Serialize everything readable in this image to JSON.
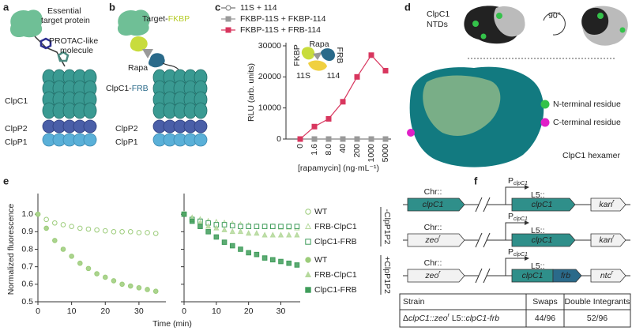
{
  "panel_labels": [
    "a",
    "b",
    "c",
    "d",
    "e",
    "f"
  ],
  "panel_a": {
    "target": [
      "Essential",
      "target protein"
    ],
    "molecule": [
      "PROTAC-like",
      "molecule"
    ],
    "clpc1": "ClpC1",
    "clpp2": "ClpP2",
    "clpp1": "ClpP1"
  },
  "panel_b": {
    "target": [
      "Target-",
      "FKBP"
    ],
    "rapa": "Rapa",
    "clpc1": [
      "ClpC1-",
      "FRB"
    ],
    "clpp2": "ClpP2",
    "clpp1": "ClpP1"
  },
  "panel_d": {
    "ntds": [
      "ClpC1",
      "NTDs"
    ],
    "rotation": "90°",
    "legend": [
      "N-terminal residue",
      "C-terminal residue"
    ],
    "hexamer": "ClpC1 hexamer"
  },
  "panel_f": {
    "constructs": [
      {
        "chr": "Chr::",
        "chr_gene": [
          "clpC1"
        ],
        "promoter": [
          "P",
          "clpC1"
        ],
        "l5": "L5::",
        "gene": "clpC1",
        "marker": [
          "kan",
          "r"
        ]
      },
      {
        "chr": "Chr::",
        "chr_gene": [
          "zeo",
          "r"
        ],
        "promoter": [
          "P",
          "clpC1"
        ],
        "l5": "L5::",
        "gene": "clpC1",
        "marker": [
          "kan",
          "r"
        ]
      },
      {
        "chr": "Chr::",
        "chr_gene": [
          "zeo",
          "r"
        ],
        "promoter": [
          "P",
          "clpC1"
        ],
        "l5": "L5::",
        "gene": "clpC1",
        "tag": "frb",
        "marker": [
          "ntc",
          "r"
        ]
      }
    ],
    "table": {
      "header": [
        "Strain",
        "Swaps",
        "Double Integrants"
      ],
      "rows": [
        [
          [
            "Δ",
            "clpC1",
            "::",
            "zeo",
            "r",
            " L5::",
            "clpC1-frb"
          ],
          "44/96",
          "52/96"
        ]
      ]
    }
  },
  "chart_data": [
    {
      "type": "line",
      "categories": [
        "0",
        "1.6",
        "8.0",
        "40",
        "200",
        "1000",
        "5000"
      ],
      "series": [
        {
          "name": "11S + 114",
          "color": "#777777",
          "marker": "o",
          "filled": false,
          "values": [
            0,
            0,
            0,
            0,
            0,
            0,
            0
          ]
        },
        {
          "name": "FKBP-11S + FKBP-114",
          "color": "#999999",
          "marker": "s",
          "filled": true,
          "values": [
            0,
            0,
            0,
            0,
            0,
            0,
            0
          ]
        },
        {
          "name": "FKBP-11S + FRB-114",
          "color": "#d8365e",
          "marker": "s",
          "filled": true,
          "values": [
            0,
            4000,
            6500,
            12000,
            20000,
            27000,
            22000
          ]
        }
      ],
      "ylim": [
        0,
        30000
      ],
      "yticks": [
        0,
        10000,
        20000,
        30000
      ],
      "ylabel": "RLU (arb. units)",
      "xlabel": "[rapamycin] (ng·mL⁻¹)",
      "inset_labels": [
        "FKBP",
        "Rapa",
        "FRB",
        "11S",
        "114"
      ]
    },
    {
      "type": "scatter",
      "x": [
        0,
        2.5,
        5,
        7.5,
        10,
        12.5,
        15,
        17.5,
        20,
        22.5,
        25,
        27.5,
        30,
        32.5,
        35
      ],
      "series": [
        {
          "name": "WT",
          "group": "-ClpP1P2",
          "color": "#9ccc7a",
          "marker": "o",
          "filled": false,
          "values": [
            1.0,
            0.97,
            0.95,
            0.94,
            0.93,
            0.92,
            0.915,
            0.91,
            0.905,
            0.9,
            0.9,
            0.9,
            0.895,
            0.895,
            0.89
          ]
        },
        {
          "name": "WT",
          "group": "+ClpP1P2",
          "color": "#9ccc7a",
          "marker": "o",
          "filled": true,
          "values": [
            1.0,
            0.92,
            0.85,
            0.8,
            0.76,
            0.72,
            0.69,
            0.66,
            0.64,
            0.62,
            0.6,
            0.59,
            0.58,
            0.57,
            0.56
          ]
        }
      ],
      "xlim": [
        0,
        38
      ],
      "xticks": [
        0,
        10,
        20,
        30
      ],
      "ylim": [
        0.5,
        1.1
      ],
      "yticks": [
        0.5,
        0.6,
        0.7,
        0.8,
        0.9,
        {
          "value": 1,
          "label": "1.0"
        }
      ],
      "ylabel": "Normalized fluorescence",
      "xlabel": "Time (min)"
    },
    {
      "type": "scatter",
      "x": [
        0,
        2.5,
        5,
        7.5,
        10,
        12.5,
        15,
        17.5,
        20,
        22.5,
        25,
        27.5,
        30,
        32.5,
        35
      ],
      "series": [
        {
          "name": "FRB-ClpC1",
          "group": "-ClpP1P2",
          "color": "#b5d99c",
          "marker": "^",
          "filled": false,
          "values": [
            1.0,
            0.98,
            0.97,
            0.96,
            0.955,
            0.95,
            0.945,
            0.94,
            0.935,
            0.93,
            0.93,
            0.93,
            0.925,
            0.925,
            0.92
          ]
        },
        {
          "name": "ClpC1-FRB",
          "group": "-ClpP1P2",
          "color": "#3f9c5a",
          "marker": "s",
          "filled": false,
          "values": [
            1.0,
            0.97,
            0.96,
            0.95,
            0.94,
            0.94,
            0.935,
            0.93,
            0.93,
            0.93,
            0.93,
            0.93,
            0.93,
            0.93,
            0.93
          ]
        },
        {
          "name": "FRB-ClpC1",
          "group": "+ClpP1P2",
          "color": "#b5d99c",
          "marker": "^",
          "filled": true,
          "values": [
            1.0,
            0.97,
            0.95,
            0.93,
            0.92,
            0.91,
            0.9,
            0.9,
            0.89,
            0.89,
            0.88,
            0.88,
            0.88,
            0.88,
            0.88
          ]
        },
        {
          "name": "ClpC1-FRB",
          "group": "+ClpP1P2",
          "color": "#3f9c5a",
          "marker": "s",
          "filled": true,
          "values": [
            1.0,
            0.96,
            0.93,
            0.9,
            0.87,
            0.84,
            0.82,
            0.8,
            0.78,
            0.77,
            0.75,
            0.74,
            0.73,
            0.72,
            0.71
          ]
        }
      ],
      "xlim": [
        0,
        36
      ],
      "xticks": [
        0,
        10,
        20,
        30
      ],
      "ylim": [
        0.5,
        1.1
      ],
      "yticks": [
        0.5,
        0.6,
        0.7,
        0.8,
        0.9,
        1
      ]
    }
  ]
}
